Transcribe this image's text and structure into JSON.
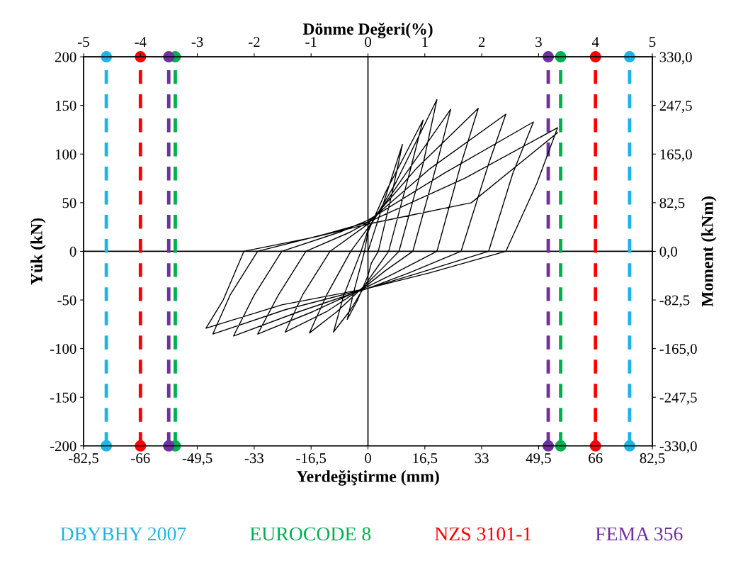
{
  "chart_data": {
    "type": "line",
    "xlabel": "Yerdeğiştirme (mm)",
    "ylabel": "Yük (kN)",
    "y2label": "Moment (kNm)",
    "x2label": "Dönme Değeri(%)",
    "xlim": [
      -82.5,
      82.5
    ],
    "xticks": [
      {
        "value": -82.5,
        "label": "-82,5"
      },
      -66,
      {
        "value": -49.5,
        "label": "-49,5"
      },
      -33,
      {
        "value": -16.5,
        "label": "-16,5"
      },
      0,
      {
        "value": 16.5,
        "label": "16,5"
      },
      33,
      {
        "value": 49.5,
        "label": "49,5"
      },
      66,
      {
        "value": 82.5,
        "label": "82,5"
      }
    ],
    "ylim": [
      -200,
      200
    ],
    "yticks": [
      -200,
      -150,
      -100,
      -50,
      0,
      50,
      100,
      150,
      200
    ],
    "y2lim": [
      -330,
      330
    ],
    "y2ticks": [
      {
        "value": -330,
        "label": "-330,0"
      },
      {
        "value": -247.5,
        "label": "-247,5"
      },
      {
        "value": -165,
        "label": "-165,0"
      },
      {
        "value": -82.5,
        "label": "-82,5"
      },
      {
        "value": 0,
        "label": "0,0"
      },
      {
        "value": 82.5,
        "label": "82,5"
      },
      {
        "value": 165,
        "label": "165,0"
      },
      {
        "value": 247.5,
        "label": "247,5"
      },
      {
        "value": 330,
        "label": "330,0"
      }
    ],
    "x2lim": [
      -5,
      5
    ],
    "x2ticks": [
      -5,
      -4,
      -3,
      -2,
      -1,
      0,
      1,
      2,
      3,
      4,
      5
    ],
    "legend": "bottom",
    "series": [
      {
        "color": "#000000",
        "x": [
          0,
          10,
          7,
          3,
          1,
          0,
          -3,
          -6,
          -4,
          -1,
          0,
          5,
          16,
          12,
          6,
          3,
          0,
          -5,
          -10,
          -7,
          -2,
          0,
          8,
          20,
          16,
          9,
          4,
          0,
          -9,
          -17,
          -12,
          -5,
          0,
          11,
          24,
          20,
          13,
          5,
          0,
          -12,
          -24,
          -19,
          -11,
          0,
          14,
          32,
          27,
          20,
          8,
          0,
          -16,
          -32,
          -26,
          -18,
          -5,
          0,
          18,
          40,
          35,
          27,
          12,
          0,
          -20,
          -39,
          -33,
          -25,
          -8,
          0,
          22,
          48,
          42,
          35,
          15,
          0,
          -24,
          -45,
          -40,
          -32,
          -12,
          0,
          28,
          55,
          49,
          40,
          18,
          0,
          -25,
          -47,
          -42,
          -36,
          -15,
          0,
          30,
          55
        ],
        "values": [
          0,
          110,
          60,
          0,
          -12,
          -25,
          -50,
          -70,
          -40,
          0,
          20,
          60,
          135,
          80,
          0,
          -15,
          -30,
          -60,
          -83,
          -45,
          0,
          22,
          70,
          156,
          90,
          0,
          -18,
          -32,
          -62,
          -84,
          -45,
          0,
          24,
          80,
          146,
          90,
          0,
          -20,
          -34,
          -62,
          -83,
          -45,
          0,
          28,
          85,
          147,
          90,
          0,
          -22,
          -36,
          -62,
          -85,
          -45,
          0,
          20,
          30,
          85,
          141,
          90,
          0,
          -22,
          -38,
          -62,
          -87,
          -45,
          0,
          20,
          32,
          80,
          133,
          80,
          0,
          -22,
          -38,
          -60,
          -85,
          -45,
          0,
          18,
          30,
          75,
          127,
          70,
          0,
          -22,
          -38,
          -55,
          -79,
          -50,
          0,
          15,
          28,
          50,
          122
        ]
      },
      {
        "type": "scatter",
        "marker": "circle",
        "color": "#1fb4e8",
        "x": [
          -75.9,
          -75.9,
          75.9,
          75.9
        ],
        "values": [
          200,
          -200,
          200,
          -200
        ]
      },
      {
        "type": "scatter",
        "marker": "circle",
        "color": "#00b050",
        "x": [
          -55.9,
          -55.9,
          55.9,
          55.9
        ],
        "values": [
          200,
          -200,
          200,
          -200
        ]
      },
      {
        "type": "scatter",
        "marker": "circle",
        "color": "#ff0000",
        "x": [
          -66,
          -66,
          66,
          66
        ],
        "values": [
          200,
          -200,
          200,
          -200
        ]
      },
      {
        "type": "scatter",
        "marker": "circle",
        "color": "#7030a0",
        "x": [
          -57.8,
          -57.8,
          52.3,
          52.3
        ],
        "values": [
          200,
          -200,
          200,
          -200
        ]
      }
    ],
    "ref_lines": [
      {
        "axis": "x",
        "value": 0,
        "color": "#000000",
        "line_style": "solid"
      },
      {
        "axis": "y",
        "value": 0,
        "color": "#000000",
        "line_style": "solid"
      },
      {
        "axis": "x",
        "value": -75.9,
        "label": "DBYBHY 2007",
        "color": "#1fb4e8",
        "line_style": "dashed"
      },
      {
        "axis": "x",
        "value": 75.9,
        "color": "#1fb4e8",
        "line_style": "dashed"
      },
      {
        "axis": "x",
        "value": -55.9,
        "label": "EUROCODE 8",
        "color": "#00b050",
        "line_style": "dashed"
      },
      {
        "axis": "x",
        "value": 55.9,
        "color": "#00b050",
        "line_style": "dashed"
      },
      {
        "axis": "x",
        "value": -66,
        "label": "NZS 3101-1",
        "color": "#ff0000",
        "line_style": "dashed"
      },
      {
        "axis": "x",
        "value": 66,
        "color": "#ff0000",
        "line_style": "dashed"
      },
      {
        "axis": "x",
        "value": -57.8,
        "label": "FEMA 356",
        "color": "#7030a0",
        "line_style": "dashed"
      },
      {
        "axis": "x",
        "value": 52.3,
        "color": "#7030a0",
        "line_style": "dashed"
      }
    ]
  }
}
